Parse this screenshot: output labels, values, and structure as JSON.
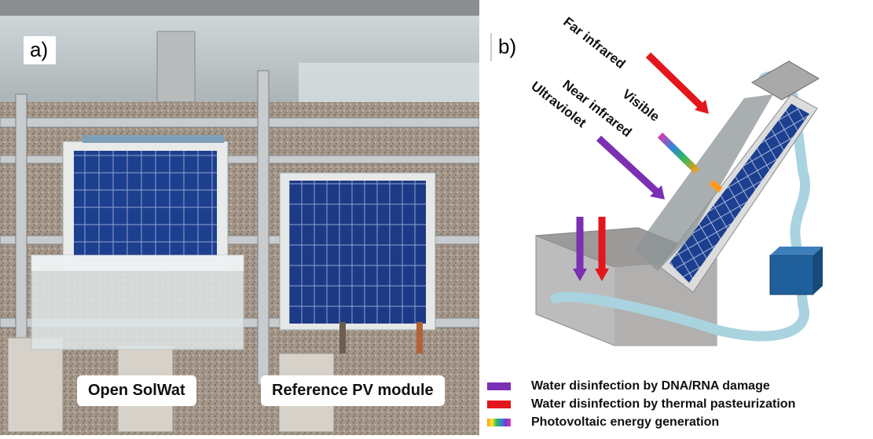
{
  "panel_a": {
    "label": "a)",
    "captions": {
      "open_solwat": "Open SolWat",
      "reference_pv": "Reference PV module"
    }
  },
  "panel_b": {
    "label": "b)",
    "ray_labels": {
      "far_infrared": "Far infrared",
      "visible": "Visible",
      "near_infrared": "Near infrared",
      "ultraviolet": "Ultraviolet"
    },
    "legend": [
      {
        "text": "Water disinfection by DNA/RNA damage",
        "color": "#7b2fb3"
      },
      {
        "text": "Water disinfection by thermal pasteurization",
        "color": "#e3161b"
      },
      {
        "text": "Photovoltaic energy generation",
        "color": "rainbow"
      }
    ]
  },
  "colors": {
    "uv_purple": "#7b2fb3",
    "far_ir_red": "#e3161b",
    "solar_cell_blue": "#1d3f8f",
    "pipe_blue": "#a9d3df",
    "pump_blue": "#1f5f9b"
  }
}
